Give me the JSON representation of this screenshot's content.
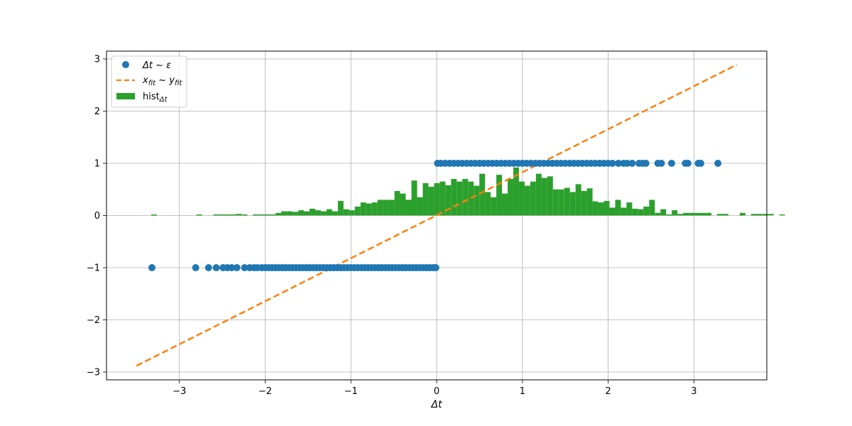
{
  "chart_data": {
    "type": "scatter",
    "title": "",
    "xlabel": "Δt",
    "ylabel": "",
    "xlim": [
      -3.85,
      3.85
    ],
    "ylim": [
      -3.15,
      3.15
    ],
    "grid": true,
    "legend_position": "upper-left",
    "x_ticks": [
      -3,
      -2,
      -1,
      0,
      1,
      2,
      3
    ],
    "y_ticks": [
      -3,
      -2,
      -1,
      0,
      1,
      2,
      3
    ],
    "x_tick_labels": [
      "−3",
      "−2",
      "−1",
      "0",
      "1",
      "2",
      "3"
    ],
    "y_tick_labels": [
      "−3",
      "−2",
      "−1",
      "0",
      "1",
      "2",
      "3"
    ],
    "colors": {
      "scatter": "#1f77b4",
      "fit": "#ff7f0e",
      "hist": "#2ca02c",
      "grid": "#b0b0b0"
    },
    "legend": [
      {
        "label": "Δt ~ ε",
        "marker": "circle",
        "color": "#1f77b4"
      },
      {
        "label": "x",
        "subscript": "fit",
        "label2": " ~ y",
        "subscript2": "fit",
        "marker": "dashed-line",
        "color": "#ff7f0e"
      },
      {
        "label": "hist",
        "subscript": "Δt",
        "marker": "bar",
        "color": "#2ca02c"
      }
    ],
    "series": [
      {
        "name": "Δt ~ ε",
        "type": "scatter",
        "y_negative": -1,
        "x_negative": [
          -3.32,
          -2.81,
          -2.66,
          -2.57,
          -2.49,
          -2.44,
          -2.39,
          -2.33,
          -2.24,
          -2.18,
          -2.13,
          -2.09,
          -2.04,
          -2.0,
          -1.96,
          -1.92,
          -1.88,
          -1.84,
          -1.8,
          -1.76,
          -1.72,
          -1.68,
          -1.64,
          -1.6,
          -1.56,
          -1.52,
          -1.48,
          -1.44,
          -1.4,
          -1.36,
          -1.32,
          -1.28,
          -1.24,
          -1.2,
          -1.16,
          -1.12,
          -1.08,
          -1.04,
          -1.0,
          -0.96,
          -0.92,
          -0.88,
          -0.84,
          -0.8,
          -0.76,
          -0.72,
          -0.68,
          -0.64,
          -0.6,
          -0.56,
          -0.52,
          -0.48,
          -0.44,
          -0.4,
          -0.36,
          -0.32,
          -0.28,
          -0.24,
          -0.2,
          -0.16,
          -0.12,
          -0.08,
          -0.04,
          -0.01
        ],
        "y_positive": 1,
        "x_positive": [
          0.01,
          0.05,
          0.1,
          0.15,
          0.2,
          0.25,
          0.3,
          0.35,
          0.4,
          0.45,
          0.5,
          0.55,
          0.6,
          0.65,
          0.7,
          0.75,
          0.8,
          0.85,
          0.9,
          0.95,
          1.0,
          1.05,
          1.1,
          1.15,
          1.2,
          1.25,
          1.3,
          1.35,
          1.4,
          1.45,
          1.5,
          1.55,
          1.6,
          1.65,
          1.7,
          1.75,
          1.8,
          1.85,
          1.9,
          1.95,
          2.0,
          2.05,
          2.12,
          2.18,
          2.22,
          2.28,
          2.36,
          2.4,
          2.44,
          2.58,
          2.62,
          2.74,
          2.9,
          2.93,
          3.05,
          3.08,
          3.28
        ]
      },
      {
        "name": "x_fit ~ y_fit",
        "type": "line",
        "style": "dashed",
        "x": [
          -3.5,
          3.5
        ],
        "y": [
          -2.88,
          2.89
        ]
      },
      {
        "name": "hist_Δt",
        "type": "histogram",
        "bin_width": 0.066,
        "bin_start": -3.33,
        "values": [
          0.02,
          0,
          0,
          0,
          0,
          0,
          0,
          0,
          0.02,
          0,
          0,
          0.02,
          0.02,
          0.02,
          0.02,
          0.03,
          0.02,
          0,
          0.02,
          0.02,
          0.02,
          0.02,
          0.05,
          0.08,
          0.08,
          0.07,
          0.1,
          0.08,
          0.13,
          0.1,
          0.08,
          0.12,
          0.08,
          0.28,
          0.12,
          0.1,
          0.17,
          0.25,
          0.23,
          0.25,
          0.3,
          0.3,
          0.3,
          0.47,
          0.42,
          0.3,
          0.67,
          0.35,
          0.62,
          0.55,
          0.62,
          0.65,
          0.58,
          0.7,
          0.65,
          0.7,
          0.65,
          0.57,
          0.8,
          0.45,
          0.35,
          0.78,
          0.42,
          0.7,
          0.92,
          0.65,
          0.57,
          0.65,
          0.8,
          0.72,
          0.75,
          0.5,
          0.5,
          0.53,
          0.45,
          0.6,
          0.47,
          0.52,
          0.27,
          0.25,
          0.28,
          0.15,
          0.3,
          0.15,
          0.25,
          0.13,
          0.12,
          0.17,
          0.3,
          0.05,
          0.12,
          0.02,
          0.1,
          0.03,
          0.05,
          0.05,
          0.05,
          0.05,
          0.05,
          0,
          0.03,
          0.03,
          0,
          0,
          0.05,
          0,
          0.03,
          0.03,
          0.03,
          0.03,
          0,
          0.02
        ]
      }
    ]
  }
}
